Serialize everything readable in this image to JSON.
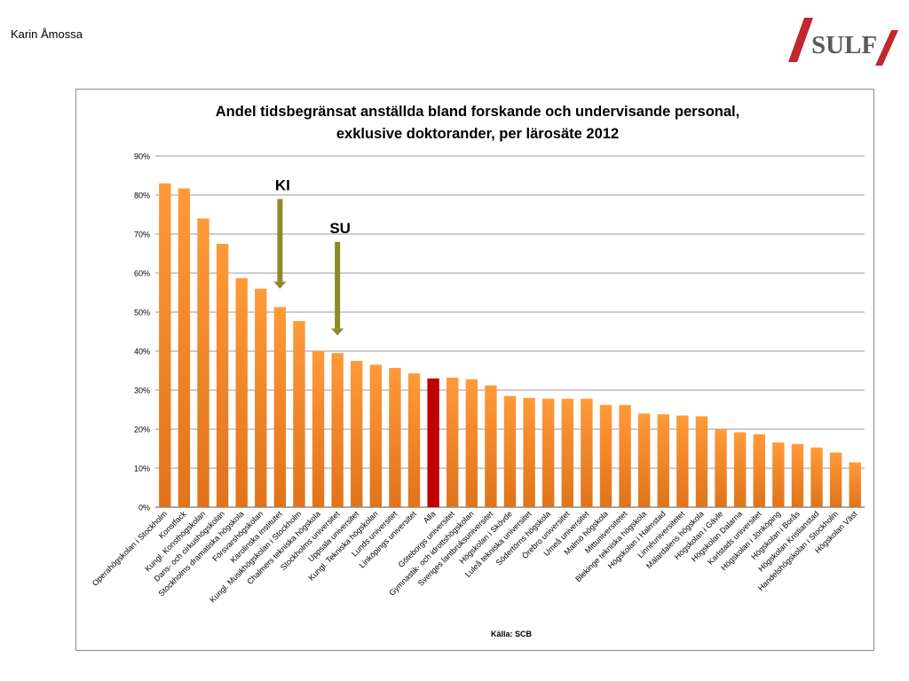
{
  "header": {
    "author": "Karin Åmossa",
    "logo_text": "SULF"
  },
  "colors": {
    "bar_default": "#f08a2a",
    "bar_highlight": "#c00000",
    "arrow": "#8b8b2a",
    "logo_red": "#c1272d",
    "logo_text": "#5a5a5a"
  },
  "chart_data": {
    "type": "bar",
    "title": "Andel tidsbegränsat anställda bland forskande och undervisande personal, exklusive doktorander, per lärosäte 2012",
    "title_lines": [
      "Andel tidsbegränsat anställda bland forskande och undervisande personal,",
      "exklusive doktorander, per lärosäte 2012"
    ],
    "source": "Källa: SCB",
    "ylim": [
      0,
      90
    ],
    "yticks": [
      0,
      10,
      20,
      30,
      40,
      50,
      60,
      70,
      80,
      90
    ],
    "ytick_labels": [
      "0%",
      "10%",
      "20%",
      "30%",
      "40%",
      "50%",
      "60%",
      "70%",
      "80%",
      "90%"
    ],
    "grid": true,
    "highlight_category": "Alla",
    "categories": [
      "Operahögskolan i Stockholm",
      "Konstfack",
      "Kungl. Konsthögskolan",
      "Dans- och cirkushögskolan",
      "Stockholms dramatiska högskola",
      "Försvarshögskolan",
      "Karolinska institutet",
      "Kungl. Musikhögskolan i Stockholm",
      "Chalmers tekniska högskola",
      "Stockholms universitet",
      "Uppsala universitet",
      "Kungl. Tekniska högskolan",
      "Lunds universitet",
      "Linköpings universitet",
      "Alla",
      "Göteborgs universitet",
      "Gymnastik- och idrottshögskolan",
      "Sveriges lantbruksuniversitet",
      "Högskolan i Skövde",
      "Luleå tekniska universitet",
      "Södertörns högskola",
      "Örebro universitet",
      "Umeå universitet",
      "Malmö högskola",
      "Mittuniversitetet",
      "Blekinge tekniska högskola",
      "Högskolan i Halmstad",
      "Linnéuniversitetet",
      "Mälardalens högskola",
      "Högskolan i Gävle",
      "Högskolan Dalarna",
      "Karlstads universitet",
      "Högskolan i Jönköping",
      "Högskolan i Borås",
      "Högskolan Kristianstad",
      "Handelshögskolan i Stockholm",
      "Högskolan Väst"
    ],
    "values": [
      83,
      81.7,
      74,
      67.5,
      58.7,
      56,
      51.3,
      47.7,
      40,
      39.5,
      37.5,
      36.5,
      35.7,
      34.3,
      33,
      33.2,
      32.8,
      31.2,
      28.5,
      28,
      27.8,
      27.8,
      27.8,
      26.2,
      26.2,
      24,
      23.8,
      23.5,
      23.3,
      20,
      19.2,
      18.7,
      16.6,
      16.2,
      15.3,
      14,
      11.5
    ],
    "annotations": [
      {
        "label": "KI",
        "category": "Karolinska institutet",
        "arrow_from": 79,
        "arrow_to": 56
      },
      {
        "label": "SU",
        "category": "Stockholms universitet",
        "arrow_from": 68,
        "arrow_to": 44
      }
    ]
  }
}
